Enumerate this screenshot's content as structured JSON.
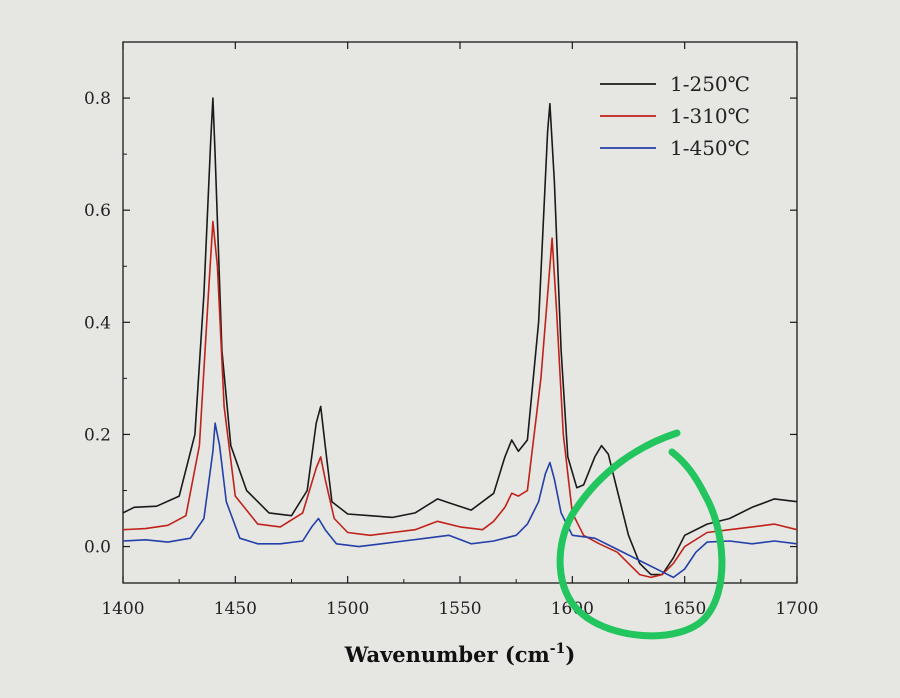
{
  "chart_data": {
    "type": "line",
    "title": "",
    "xlabel": "Wavenumber (cm",
    "xlabel_superscript": "-1",
    "xlabel_close": ")",
    "ylabel": "",
    "xlim": [
      1400,
      1700
    ],
    "ylim": [
      -0.065,
      0.9
    ],
    "x_ticks": [
      1400,
      1450,
      1500,
      1550,
      1600,
      1650,
      1700
    ],
    "x_tick_labels": [
      "1400",
      "1450",
      "1500",
      "1550",
      "1600",
      "1650",
      "1700"
    ],
    "y_ticks": [
      0.0,
      0.2,
      0.4,
      0.6,
      0.8
    ],
    "y_tick_labels": [
      "0.0",
      "0.2",
      "0.4",
      "0.6",
      "0.8"
    ],
    "grid": false,
    "legend_position": "top-right",
    "series": [
      {
        "name": "1-250℃",
        "color": "#1a1a1a",
        "points": [
          [
            1400,
            0.06
          ],
          [
            1405,
            0.07
          ],
          [
            1415,
            0.072
          ],
          [
            1425,
            0.09
          ],
          [
            1432,
            0.2
          ],
          [
            1436,
            0.45
          ],
          [
            1439,
            0.72
          ],
          [
            1440,
            0.8
          ],
          [
            1441,
            0.7
          ],
          [
            1444,
            0.35
          ],
          [
            1448,
            0.18
          ],
          [
            1455,
            0.1
          ],
          [
            1465,
            0.06
          ],
          [
            1475,
            0.055
          ],
          [
            1482,
            0.1
          ],
          [
            1486,
            0.22
          ],
          [
            1488,
            0.25
          ],
          [
            1490,
            0.18
          ],
          [
            1493,
            0.08
          ],
          [
            1500,
            0.058
          ],
          [
            1510,
            0.055
          ],
          [
            1520,
            0.052
          ],
          [
            1530,
            0.06
          ],
          [
            1540,
            0.085
          ],
          [
            1545,
            0.078
          ],
          [
            1555,
            0.065
          ],
          [
            1565,
            0.095
          ],
          [
            1570,
            0.16
          ],
          [
            1573,
            0.19
          ],
          [
            1576,
            0.17
          ],
          [
            1580,
            0.19
          ],
          [
            1585,
            0.4
          ],
          [
            1589,
            0.74
          ],
          [
            1590,
            0.79
          ],
          [
            1592,
            0.65
          ],
          [
            1595,
            0.35
          ],
          [
            1598,
            0.16
          ],
          [
            1602,
            0.105
          ],
          [
            1605,
            0.11
          ],
          [
            1610,
            0.16
          ],
          [
            1613,
            0.18
          ],
          [
            1616,
            0.165
          ],
          [
            1620,
            0.1
          ],
          [
            1625,
            0.02
          ],
          [
            1630,
            -0.03
          ],
          [
            1635,
            -0.05
          ],
          [
            1640,
            -0.05
          ],
          [
            1645,
            -0.02
          ],
          [
            1650,
            0.02
          ],
          [
            1660,
            0.04
          ],
          [
            1670,
            0.05
          ],
          [
            1680,
            0.07
          ],
          [
            1690,
            0.085
          ],
          [
            1700,
            0.08
          ]
        ]
      },
      {
        "name": "1-310℃",
        "color": "#c0221a",
        "points": [
          [
            1400,
            0.03
          ],
          [
            1410,
            0.032
          ],
          [
            1420,
            0.038
          ],
          [
            1428,
            0.055
          ],
          [
            1434,
            0.18
          ],
          [
            1438,
            0.45
          ],
          [
            1440,
            0.58
          ],
          [
            1442,
            0.5
          ],
          [
            1445,
            0.25
          ],
          [
            1450,
            0.09
          ],
          [
            1460,
            0.04
          ],
          [
            1470,
            0.035
          ],
          [
            1480,
            0.06
          ],
          [
            1486,
            0.14
          ],
          [
            1488,
            0.16
          ],
          [
            1490,
            0.12
          ],
          [
            1494,
            0.05
          ],
          [
            1500,
            0.025
          ],
          [
            1510,
            0.02
          ],
          [
            1520,
            0.025
          ],
          [
            1530,
            0.03
          ],
          [
            1540,
            0.045
          ],
          [
            1550,
            0.035
          ],
          [
            1560,
            0.03
          ],
          [
            1565,
            0.045
          ],
          [
            1570,
            0.07
          ],
          [
            1573,
            0.095
          ],
          [
            1576,
            0.09
          ],
          [
            1580,
            0.1
          ],
          [
            1586,
            0.3
          ],
          [
            1590,
            0.5
          ],
          [
            1591,
            0.55
          ],
          [
            1593,
            0.42
          ],
          [
            1596,
            0.2
          ],
          [
            1600,
            0.06
          ],
          [
            1605,
            0.02
          ],
          [
            1612,
            0.005
          ],
          [
            1620,
            -0.01
          ],
          [
            1625,
            -0.03
          ],
          [
            1630,
            -0.05
          ],
          [
            1635,
            -0.055
          ],
          [
            1640,
            -0.05
          ],
          [
            1645,
            -0.03
          ],
          [
            1650,
            0.0
          ],
          [
            1660,
            0.025
          ],
          [
            1670,
            0.03
          ],
          [
            1680,
            0.035
          ],
          [
            1690,
            0.04
          ],
          [
            1700,
            0.03
          ]
        ]
      },
      {
        "name": "1-450℃",
        "color": "#2340a8",
        "points": [
          [
            1400,
            0.01
          ],
          [
            1410,
            0.012
          ],
          [
            1420,
            0.008
          ],
          [
            1430,
            0.015
          ],
          [
            1436,
            0.05
          ],
          [
            1440,
            0.17
          ],
          [
            1441,
            0.22
          ],
          [
            1443,
            0.18
          ],
          [
            1446,
            0.08
          ],
          [
            1452,
            0.015
          ],
          [
            1460,
            0.005
          ],
          [
            1470,
            0.005
          ],
          [
            1480,
            0.01
          ],
          [
            1484,
            0.035
          ],
          [
            1487,
            0.05
          ],
          [
            1490,
            0.03
          ],
          [
            1495,
            0.005
          ],
          [
            1505,
            0.0
          ],
          [
            1515,
            0.005
          ],
          [
            1525,
            0.01
          ],
          [
            1535,
            0.015
          ],
          [
            1545,
            0.02
          ],
          [
            1555,
            0.005
          ],
          [
            1565,
            0.01
          ],
          [
            1575,
            0.02
          ],
          [
            1580,
            0.04
          ],
          [
            1585,
            0.08
          ],
          [
            1588,
            0.13
          ],
          [
            1590,
            0.15
          ],
          [
            1592,
            0.12
          ],
          [
            1595,
            0.06
          ],
          [
            1600,
            0.02
          ],
          [
            1610,
            0.015
          ],
          [
            1620,
            -0.005
          ],
          [
            1630,
            -0.025
          ],
          [
            1640,
            -0.045
          ],
          [
            1645,
            -0.055
          ],
          [
            1650,
            -0.04
          ],
          [
            1655,
            -0.01
          ],
          [
            1660,
            0.008
          ],
          [
            1670,
            0.01
          ],
          [
            1680,
            0.005
          ],
          [
            1690,
            0.01
          ],
          [
            1700,
            0.005
          ]
        ]
      }
    ]
  },
  "colors": {
    "axis": "#1a1a1a",
    "annotation": "#22c55e",
    "background": "#e6e6e3"
  }
}
